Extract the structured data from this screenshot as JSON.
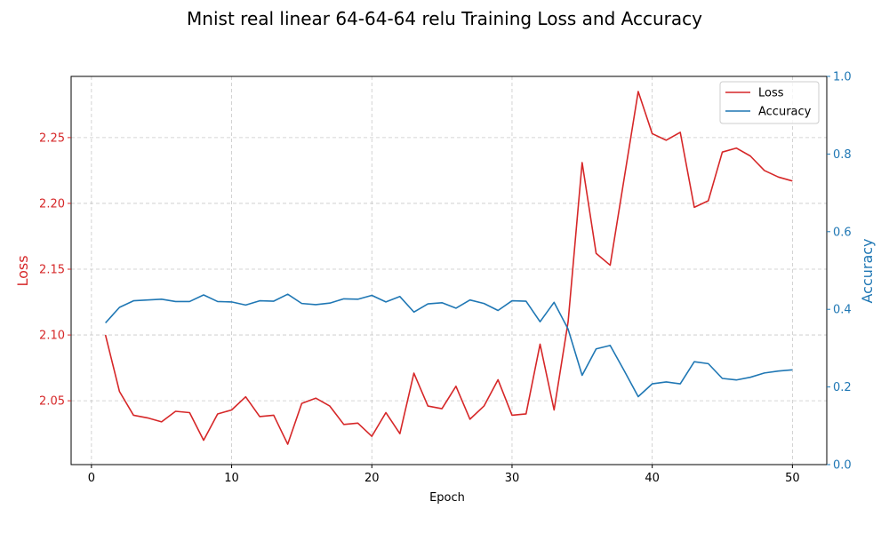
{
  "chart_data": {
    "type": "line",
    "title": "Mnist real linear 64-64-64 relu Training Loss and Accuracy",
    "xlabel": "Epoch",
    "ylabel_left": "Loss",
    "ylabel_right": "Accuracy",
    "x": [
      1,
      2,
      3,
      4,
      5,
      6,
      7,
      8,
      9,
      10,
      11,
      12,
      13,
      14,
      15,
      16,
      17,
      18,
      19,
      20,
      21,
      22,
      23,
      24,
      25,
      26,
      27,
      28,
      29,
      30,
      31,
      32,
      33,
      34,
      35,
      36,
      37,
      38,
      39,
      40,
      41,
      42,
      43,
      44,
      45,
      46,
      47,
      48,
      49,
      50
    ],
    "xlim": [
      -1.45,
      52.45
    ],
    "ylim_left": [
      2.0015,
      2.2965
    ],
    "ylim_right": [
      0,
      1
    ],
    "x_ticks": [
      0,
      10,
      20,
      30,
      40,
      50
    ],
    "y_ticks_left": [
      2.05,
      2.1,
      2.15,
      2.2,
      2.25
    ],
    "y_ticks_right": [
      0.0,
      0.2,
      0.4,
      0.6,
      0.8,
      1.0
    ],
    "grid": true,
    "legend_position": "top-right",
    "series": [
      {
        "name": "Loss",
        "axis": "left",
        "color": "#d62728",
        "values": [
          2.1,
          2.057,
          2.039,
          2.037,
          2.034,
          2.042,
          2.041,
          2.02,
          2.04,
          2.043,
          2.053,
          2.038,
          2.039,
          2.017,
          2.048,
          2.052,
          2.046,
          2.032,
          2.033,
          2.023,
          2.041,
          2.025,
          2.071,
          2.046,
          2.044,
          2.061,
          2.036,
          2.046,
          2.066,
          2.039,
          2.04,
          2.093,
          2.043,
          2.11,
          2.231,
          2.162,
          2.153,
          2.219,
          2.285,
          2.253,
          2.248,
          2.254,
          2.197,
          2.202,
          2.239,
          2.242,
          2.236,
          2.225,
          2.22,
          2.217
        ]
      },
      {
        "name": "Accuracy",
        "axis": "right",
        "color": "#1f77b4",
        "values": [
          0.365,
          0.405,
          0.422,
          0.424,
          0.426,
          0.42,
          0.42,
          0.437,
          0.42,
          0.419,
          0.411,
          0.422,
          0.421,
          0.439,
          0.415,
          0.412,
          0.416,
          0.427,
          0.426,
          0.436,
          0.419,
          0.433,
          0.393,
          0.414,
          0.417,
          0.403,
          0.424,
          0.415,
          0.397,
          0.422,
          0.421,
          0.368,
          0.418,
          0.349,
          0.23,
          0.298,
          0.307,
          0.242,
          0.175,
          0.208,
          0.213,
          0.208,
          0.265,
          0.26,
          0.222,
          0.218,
          0.225,
          0.236,
          0.241,
          0.244
        ]
      }
    ]
  }
}
